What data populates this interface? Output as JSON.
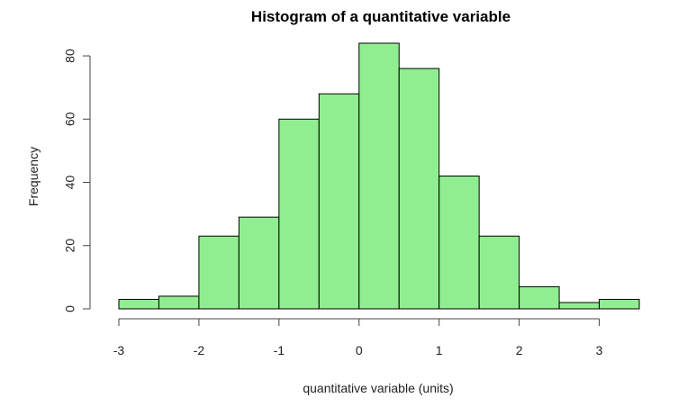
{
  "chart_data": {
    "type": "bar",
    "title": "Histogram of a quantitative variable",
    "xlabel": "quantitative variable (units)",
    "ylabel": "Frequency",
    "bins": [
      {
        "from": -3.0,
        "to": -2.5,
        "count": 3
      },
      {
        "from": -2.5,
        "to": -2.0,
        "count": 4
      },
      {
        "from": -2.0,
        "to": -1.5,
        "count": 23
      },
      {
        "from": -1.5,
        "to": -1.0,
        "count": 29
      },
      {
        "from": -1.0,
        "to": -0.5,
        "count": 60
      },
      {
        "from": -0.5,
        "to": 0.0,
        "count": 68
      },
      {
        "from": 0.0,
        "to": 0.5,
        "count": 84
      },
      {
        "from": 0.5,
        "to": 1.0,
        "count": 76
      },
      {
        "from": 1.0,
        "to": 1.5,
        "count": 42
      },
      {
        "from": 1.5,
        "to": 2.0,
        "count": 23
      },
      {
        "from": 2.0,
        "to": 2.5,
        "count": 7
      },
      {
        "from": 2.5,
        "to": 3.0,
        "count": 2
      },
      {
        "from": 3.0,
        "to": 3.5,
        "count": 3
      }
    ],
    "x_ticks": [
      "-3",
      "-2",
      "-1",
      "0",
      "1",
      "2",
      "3"
    ],
    "y_ticks": [
      "0",
      "20",
      "40",
      "60",
      "80"
    ],
    "xlim": [
      -3,
      3.5
    ],
    "ylim": [
      0,
      84
    ],
    "bar_color": "#90ee90",
    "bar_border_color": "#000000",
    "grid": false,
    "legend": "none"
  }
}
